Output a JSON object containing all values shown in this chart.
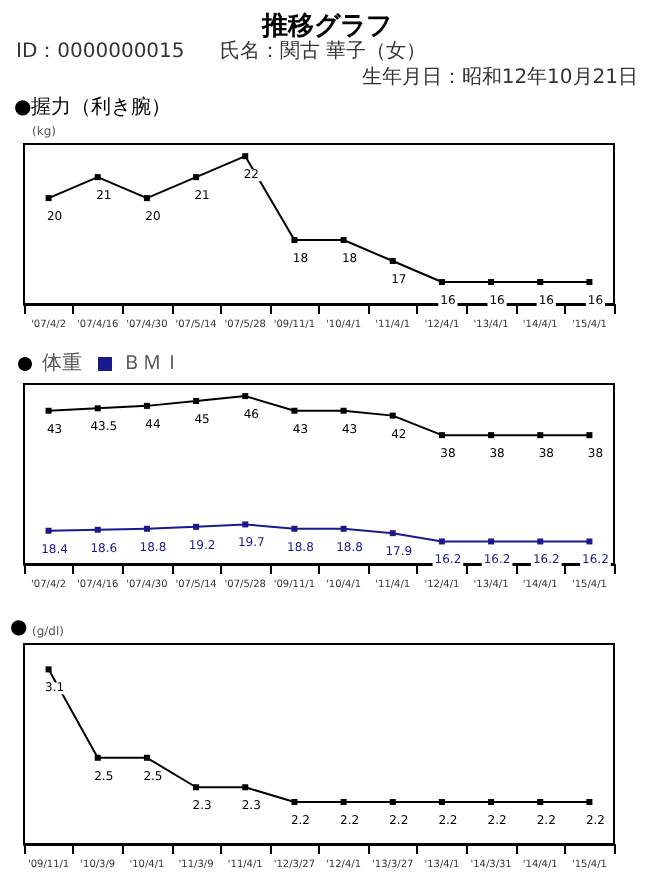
{
  "chart_data": [
    {
      "type": "line",
      "title": "推移グラフ",
      "subtitle": "●握力（利き腕）",
      "ylabel": "(kg)",
      "annotations": [
        "ID：0000000015",
        "氏名：関古 華子（女）",
        "生年月日：昭和12年10月21日"
      ],
      "categories": [
        "'07/4/2",
        "'07/4/16",
        "'07/4/30",
        "'07/5/14",
        "'07/5/28",
        "'09/11/1",
        "'10/4/1",
        "'11/4/1",
        "'12/4/1",
        "'13/4/1",
        "'14/4/1",
        "'15/4/1"
      ],
      "series": [
        {
          "color": "#000000",
          "values": [
            20,
            21,
            20,
            21,
            22,
            18,
            18,
            17,
            16,
            16,
            16,
            16
          ]
        }
      ],
      "data_labels": true,
      "marker": "square",
      "grid": false,
      "legend": false,
      "tick_labels": "x"
    },
    {
      "type": "line",
      "categories": [
        "'07/4/2",
        "'07/4/16",
        "'07/4/30",
        "'07/5/14",
        "'07/5/28",
        "'09/11/1",
        "'10/4/1",
        "'11/4/1",
        "'12/4/1",
        "'13/4/1",
        "'14/4/1",
        "'15/4/1"
      ],
      "series": [
        {
          "name": "体重",
          "color": "#000000",
          "values": [
            43,
            43.5,
            44,
            45,
            46,
            43,
            43,
            42,
            38,
            38,
            38,
            38
          ]
        },
        {
          "name": "ＢＭＩ",
          "color": "#1a1a8c",
          "values": [
            18.4,
            18.6,
            18.8,
            19.2,
            19.7,
            18.8,
            18.8,
            17.9,
            16.2,
            16.2,
            16.2,
            16.2
          ]
        }
      ],
      "data_labels": true,
      "marker": "square",
      "grid": false,
      "legend": "top left",
      "tick_labels": "x"
    },
    {
      "type": "line",
      "title": "●",
      "ylabel": "(g/dl)",
      "categories": [
        "'09/11/1",
        "'10/3/9",
        "'10/4/1",
        "'11/3/9",
        "'11/4/1",
        "'12/3/27",
        "'12/4/1",
        "'13/3/27",
        "'13/4/1",
        "'14/3/31",
        "'14/4/1",
        "'15/4/1"
      ],
      "series": [
        {
          "color": "#000000",
          "values": [
            3.1,
            2.5,
            2.5,
            2.3,
            2.3,
            2.2,
            2.2,
            2.2,
            2.2,
            2.2,
            2.2,
            2.2
          ]
        }
      ],
      "data_labels": true,
      "marker": "square",
      "grid": false,
      "legend": false,
      "tick_labels": "x"
    }
  ]
}
